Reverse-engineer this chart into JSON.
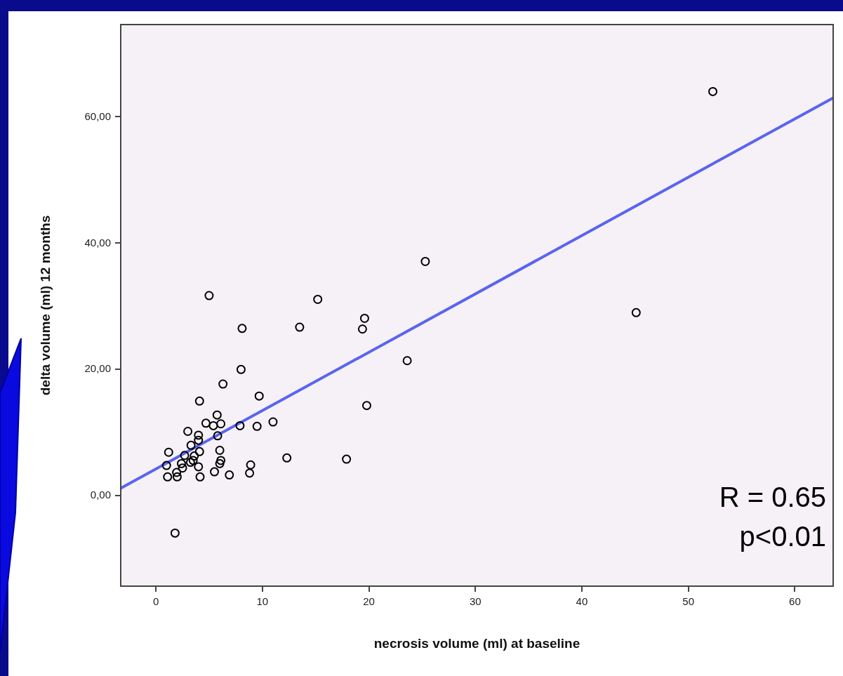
{
  "chart_data": {
    "type": "scatter",
    "xlabel": "necrosis volume (ml) at baseline",
    "ylabel": "delta volume (ml) 12 months",
    "xlim": [
      -3.3,
      63.6
    ],
    "ylim": [
      -14.3,
      74.6
    ],
    "xticks": [
      0,
      10,
      20,
      30,
      40,
      50,
      60
    ],
    "yticks": [
      {
        "value": 0,
        "label": "0,00"
      },
      {
        "value": 20,
        "label": "20,00"
      },
      {
        "value": 40,
        "label": "40,00"
      },
      {
        "value": 60,
        "label": "60,00"
      }
    ],
    "legend": false,
    "marker": "circle",
    "series": [
      {
        "color": "#000000",
        "x": [
          5.0,
          8.1,
          13.5,
          15.2,
          8.0,
          6.3,
          9.7,
          4.1,
          5.75,
          4.7,
          5.4,
          6.1,
          7.9,
          9.5,
          11.0,
          3.0,
          4.0,
          4.0,
          5.8,
          3.3,
          4.1,
          6.0,
          1.2,
          2.7,
          3.6,
          3.5,
          3.25,
          6.1,
          6.0,
          1.0,
          2.4,
          2.5,
          4.0,
          8.9,
          12.3,
          1.95,
          5.5,
          8.8,
          6.9,
          1.1,
          2.0,
          4.15,
          1.8,
          25.3,
          23.6,
          19.8,
          19.6,
          19.4,
          17.9,
          52.3,
          45.1
        ],
        "values": [
          31.7,
          26.5,
          26.7,
          31.1,
          20.0,
          17.7,
          15.8,
          15.0,
          12.8,
          11.5,
          11.1,
          11.4,
          11.1,
          11.0,
          11.7,
          10.2,
          9.6,
          8.8,
          9.5,
          8.0,
          7.0,
          7.2,
          6.9,
          6.4,
          6.3,
          5.6,
          5.3,
          5.6,
          5.1,
          4.8,
          5.1,
          4.4,
          4.6,
          4.9,
          6.0,
          3.7,
          3.8,
          3.6,
          3.3,
          3.0,
          3.0,
          3.0,
          -5.9,
          37.1,
          21.4,
          14.3,
          28.1,
          26.4,
          5.8,
          64.0,
          29.0
        ]
      },
      {
        "type": "line",
        "color": "#5a64f0",
        "marker": "none",
        "x": [
          -3.3,
          63.6
        ],
        "values": [
          1.2,
          63.0
        ]
      }
    ],
    "annotations": [
      "R = 0.65",
      "p<0.01"
    ]
  }
}
